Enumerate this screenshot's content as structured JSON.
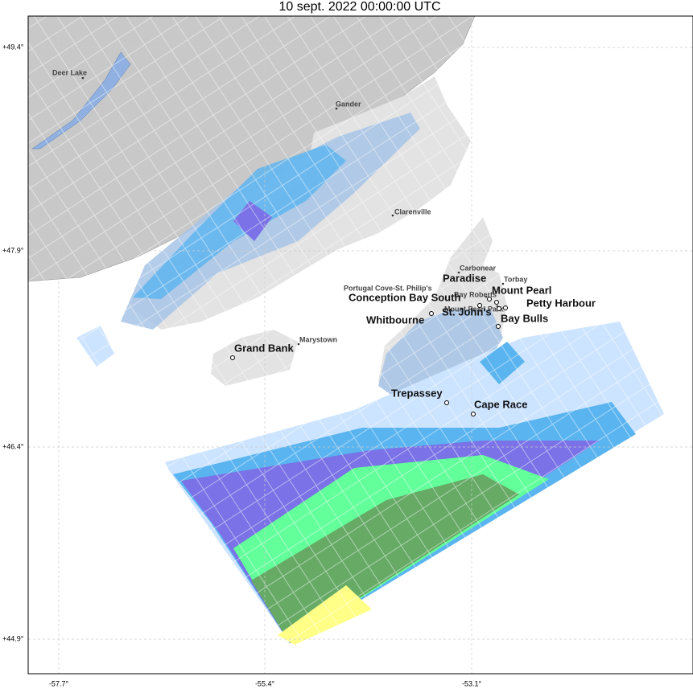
{
  "title": "10 sept. 2022 00:00:00 UTC",
  "lat_labels": [
    "+49.4°",
    "+47.9°",
    "+46.4°",
    "+44.9°"
  ],
  "lon_labels": [
    "-57.7°",
    "-55.4°",
    "-53.1°"
  ],
  "places": [
    {
      "name": "Deer Lake"
    },
    {
      "name": "Gander"
    },
    {
      "name": "Clarenville"
    },
    {
      "name": "Carbonear"
    },
    {
      "name": "Torbay"
    },
    {
      "name": "Paradise"
    },
    {
      "name": "Mount Pearl"
    },
    {
      "name": "Portugal Cove-St. Philip's"
    },
    {
      "name": "Bay Roberts"
    },
    {
      "name": "Conception Bay South"
    },
    {
      "name": "Petty Harbour"
    },
    {
      "name": "Mount Pearl Park"
    },
    {
      "name": "St. John's"
    },
    {
      "name": "Whitbourne"
    },
    {
      "name": "Bay Bulls"
    },
    {
      "name": "Marystown"
    },
    {
      "name": "Grand Bank"
    },
    {
      "name": "Trepassey"
    },
    {
      "name": "Cape Race"
    }
  ]
}
